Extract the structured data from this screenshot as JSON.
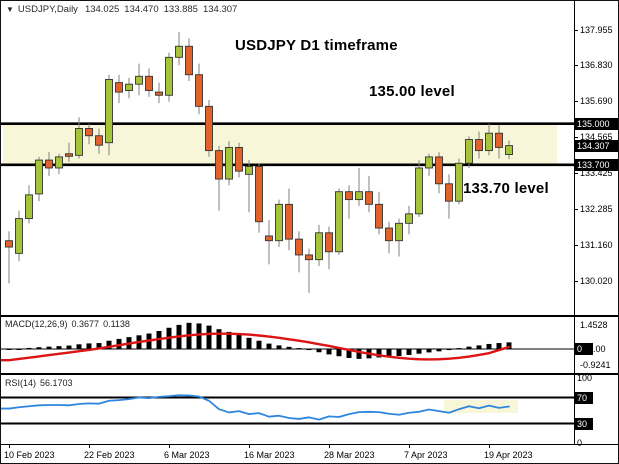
{
  "header": {
    "dropdown_icon": "▼",
    "symbol": "USDJPY,Daily",
    "open": "134.025",
    "high": "134.470",
    "low": "133.885",
    "close": "134.307"
  },
  "annotations": {
    "timeframe": "USDJPY D1 timeframe",
    "upper_level": "135.00 level",
    "lower_level": "133.70 level"
  },
  "macd": {
    "name": "MACD(12,26,9)",
    "value_main": "0.3677",
    "value_signal": "0.1138"
  },
  "rsi": {
    "name": "RSI(14)",
    "value": "56.1703"
  },
  "axes": {
    "price": {
      "ticks": [
        {
          "text": "137.955",
          "v": 137.955
        },
        {
          "text": "136.830",
          "v": 136.83
        },
        {
          "text": "135.690",
          "v": 135.69
        },
        {
          "text": "134.565",
          "v": 134.565
        },
        {
          "text": "133.425",
          "v": 133.425
        },
        {
          "text": "132.285",
          "v": 132.285
        },
        {
          "text": "131.160",
          "v": 131.16
        },
        {
          "text": "130.020",
          "v": 130.02
        }
      ],
      "badges": [
        {
          "text": "135.000",
          "v": 135.0,
          "name": "upper-level-badge"
        },
        {
          "text": "134.307",
          "v": 134.307,
          "name": "current-price-badge"
        },
        {
          "text": "133.700",
          "v": 133.7,
          "name": "lower-level-badge"
        }
      ]
    },
    "macd": {
      "ticks": [
        {
          "text": "1.4528",
          "v": 1.4528,
          "badge_first": false
        },
        {
          "text": "0.00",
          "v": 0,
          "badge_first": true
        },
        {
          "text": "-0.9241",
          "v": -0.9241,
          "badge_first": false
        }
      ]
    },
    "rsi": {
      "ticks": [
        {
          "text": "100",
          "v": 100,
          "badge": false
        },
        {
          "text": "70",
          "v": 70,
          "badge": true
        },
        {
          "text": "30",
          "v": 30,
          "badge": true
        },
        {
          "text": "0",
          "v": 0,
          "badge": false
        }
      ]
    },
    "time": {
      "labels": [
        {
          "text": "10 Feb 2023",
          "i": 0
        },
        {
          "text": "22 Feb 2023",
          "i": 8
        },
        {
          "text": "6 Mar 2023",
          "i": 16
        },
        {
          "text": "16 Mar 2023",
          "i": 24
        },
        {
          "text": "28 Mar 2023",
          "i": 32
        },
        {
          "text": "7 Apr 2023",
          "i": 40
        },
        {
          "text": "19 Apr 2023",
          "i": 48
        }
      ]
    }
  },
  "colors": {
    "bull": "#a6c43a",
    "bear": "#e2622b",
    "wick": "#808080",
    "candle_outline": "#333333",
    "band": "#f8f6d8",
    "level_line": "#000000",
    "macd_bar": "#000000",
    "macd_signal": "#dd1414",
    "rsi_line": "#2e86e0",
    "rsi_highlight": "#f8f6d8",
    "badge_bg": "#000000",
    "badge_text": "#ffffff"
  },
  "chart_data": [
    {
      "type": "candlestick",
      "title": "USDJPY Daily",
      "ylim": [
        128.95,
        138.85
      ],
      "yticks": [
        137.955,
        136.83,
        135.69,
        134.565,
        133.425,
        132.285,
        131.16,
        130.02
      ],
      "levels": {
        "upper": 135.0,
        "lower": 133.7
      },
      "current_price": 134.307,
      "dates": [
        "10 Feb",
        "13 Feb",
        "14 Feb",
        "15 Feb",
        "16 Feb",
        "17 Feb",
        "20 Feb",
        "21 Feb",
        "22 Feb",
        "23 Feb",
        "24 Feb",
        "27 Feb",
        "28 Feb",
        "1 Mar",
        "2 Mar",
        "3 Mar",
        "6 Mar",
        "7 Mar",
        "8 Mar",
        "9 Mar",
        "10 Mar",
        "13 Mar",
        "14 Mar",
        "15 Mar",
        "16 Mar",
        "17 Mar",
        "20 Mar",
        "21 Mar",
        "22 Mar",
        "23 Mar",
        "24 Mar",
        "27 Mar",
        "28 Mar",
        "29 Mar",
        "30 Mar",
        "31 Mar",
        "3 Apr",
        "4 Apr",
        "5 Apr",
        "6 Apr",
        "7 Apr",
        "10 Apr",
        "11 Apr",
        "12 Apr",
        "13 Apr",
        "14 Apr",
        "17 Apr",
        "18 Apr",
        "19 Apr",
        "20 Apr",
        "21 Apr"
      ],
      "open": [
        131.3,
        130.9,
        132.0,
        132.78,
        133.85,
        133.6,
        134.05,
        134.0,
        134.85,
        134.62,
        134.4,
        136.3,
        136.05,
        136.25,
        136.5,
        136.0,
        135.9,
        137.1,
        137.45,
        136.55,
        135.55,
        134.15,
        133.25,
        134.25,
        133.4,
        133.65,
        131.45,
        131.3,
        132.45,
        131.35,
        130.85,
        130.7,
        131.55,
        130.95,
        132.85,
        132.6,
        132.85,
        132.45,
        131.7,
        131.3,
        131.85,
        132.15,
        133.6,
        133.95,
        133.1,
        132.55,
        133.75,
        134.5,
        134.15,
        134.7,
        134.025
      ],
      "high": [
        131.6,
        132.25,
        133.05,
        133.95,
        134.1,
        134.05,
        134.4,
        135.2,
        135.0,
        134.85,
        136.55,
        136.55,
        136.45,
        136.9,
        136.75,
        136.3,
        137.25,
        137.9,
        137.7,
        136.9,
        135.75,
        134.3,
        134.45,
        134.4,
        133.85,
        133.75,
        131.95,
        132.6,
        132.95,
        131.6,
        131.05,
        131.8,
        131.75,
        132.95,
        133.05,
        133.6,
        133.35,
        132.85,
        131.9,
        132.0,
        132.4,
        133.85,
        134.05,
        134.1,
        133.4,
        133.9,
        134.6,
        134.75,
        135.0,
        134.95,
        134.47
      ],
      "low": [
        129.95,
        130.65,
        131.85,
        132.55,
        133.35,
        133.4,
        133.8,
        133.9,
        134.35,
        134.05,
        134.0,
        135.65,
        135.8,
        135.9,
        135.85,
        135.65,
        135.7,
        136.85,
        136.35,
        135.3,
        133.95,
        132.25,
        133.05,
        133.3,
        132.2,
        131.55,
        130.55,
        131.1,
        131.0,
        130.3,
        129.65,
        130.5,
        130.4,
        130.85,
        132.0,
        132.4,
        132.2,
        131.5,
        130.9,
        130.8,
        131.5,
        132.05,
        133.35,
        132.8,
        132.0,
        132.45,
        133.6,
        133.9,
        134.0,
        133.9,
        133.885
      ],
      "close": [
        131.1,
        132.0,
        132.75,
        133.85,
        133.6,
        133.95,
        133.97,
        134.85,
        134.62,
        134.32,
        136.4,
        136.0,
        136.25,
        136.5,
        136.05,
        135.9,
        137.1,
        137.45,
        136.55,
        135.55,
        134.15,
        133.25,
        134.25,
        133.5,
        133.65,
        131.9,
        131.3,
        132.45,
        131.35,
        130.85,
        130.7,
        131.55,
        130.95,
        132.85,
        132.6,
        132.85,
        132.45,
        131.7,
        131.3,
        131.85,
        132.15,
        133.6,
        133.95,
        133.1,
        132.55,
        133.75,
        134.5,
        134.15,
        134.7,
        134.25,
        134.307
      ]
    },
    {
      "type": "bar",
      "name": "MACD(12,26,9)",
      "ylim": [
        -1.35,
        1.55
      ],
      "yticks": [
        1.4528,
        0.0,
        -0.9241
      ],
      "histogram": [
        -0.05,
        0.0,
        0.06,
        0.1,
        0.13,
        0.16,
        0.19,
        0.26,
        0.31,
        0.33,
        0.46,
        0.56,
        0.66,
        0.76,
        0.86,
        1.0,
        1.18,
        1.34,
        1.4528,
        1.42,
        1.3,
        1.1,
        0.95,
        0.8,
        0.62,
        0.46,
        0.3,
        0.2,
        0.12,
        0.05,
        -0.06,
        -0.18,
        -0.3,
        -0.4,
        -0.5,
        -0.55,
        -0.52,
        -0.47,
        -0.43,
        -0.39,
        -0.33,
        -0.26,
        -0.19,
        -0.13,
        -0.06,
        0.05,
        0.13,
        0.2,
        0.28,
        0.33,
        0.3677
      ],
      "signal": [
        -0.62,
        -0.55,
        -0.48,
        -0.41,
        -0.34,
        -0.27,
        -0.2,
        -0.12,
        -0.05,
        0.03,
        0.12,
        0.21,
        0.3,
        0.39,
        0.47,
        0.55,
        0.63,
        0.7,
        0.76,
        0.81,
        0.84,
        0.85,
        0.85,
        0.83,
        0.8,
        0.75,
        0.69,
        0.62,
        0.54,
        0.46,
        0.37,
        0.27,
        0.17,
        0.06,
        -0.05,
        -0.16,
        -0.26,
        -0.35,
        -0.43,
        -0.49,
        -0.54,
        -0.57,
        -0.58,
        -0.57,
        -0.54,
        -0.49,
        -0.42,
        -0.33,
        -0.23,
        -0.06,
        0.1138
      ]
    },
    {
      "type": "line",
      "name": "RSI(14)",
      "ylim": [
        0,
        100
      ],
      "levels": [
        70,
        30
      ],
      "yticks": [
        100,
        70,
        30,
        0
      ],
      "values": [
        53,
        55,
        56.5,
        58,
        58.5,
        58.5,
        58,
        60,
        61,
        60.5,
        65,
        66,
        67.5,
        70,
        69,
        71,
        72,
        73.5,
        73,
        71.5,
        65,
        52,
        47,
        49,
        44.5,
        46,
        40.5,
        42,
        38.5,
        37,
        39.5,
        36,
        41,
        40,
        44.5,
        47.5,
        48,
        47.5,
        45,
        43.5,
        46.5,
        48,
        51.5,
        49,
        46.5,
        52,
        56.5,
        53.5,
        57.5,
        54,
        56.17
      ]
    }
  ]
}
